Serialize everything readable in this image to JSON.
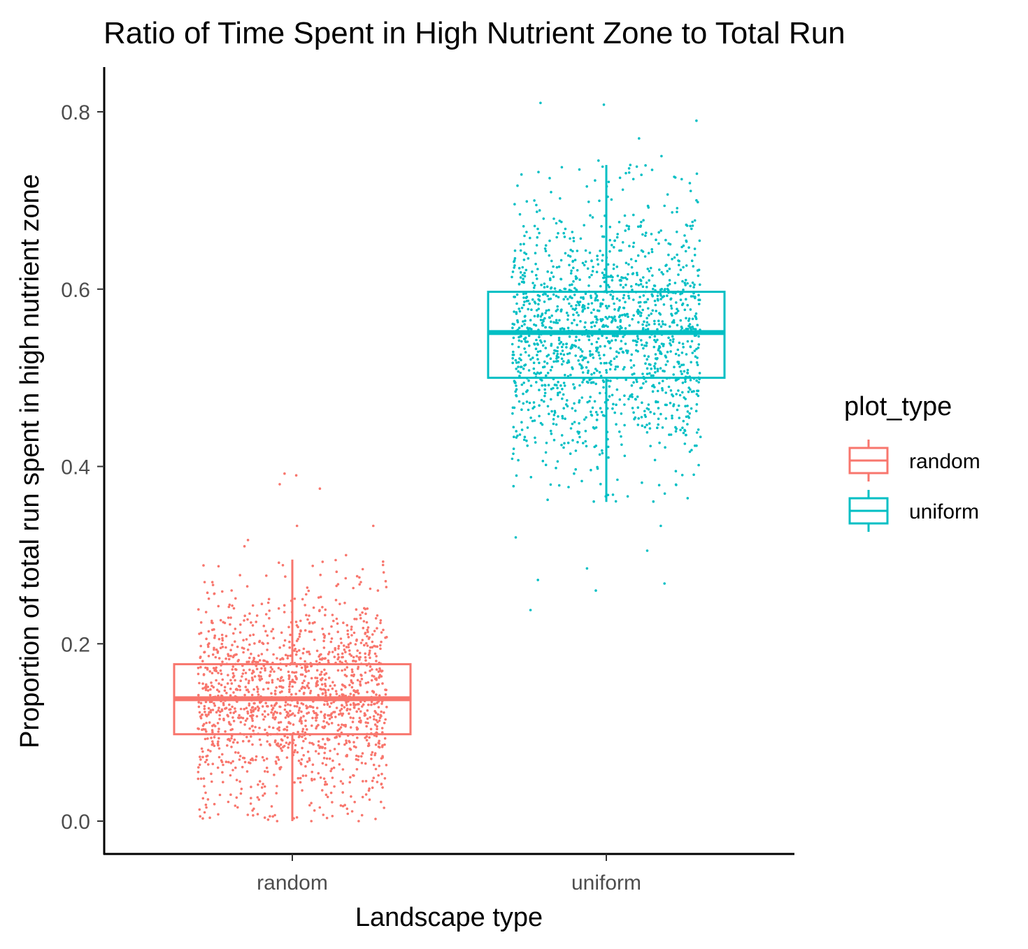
{
  "chart_data": {
    "type": "boxplot",
    "title": "Ratio of Time Spent in High Nutrient Zone to Total Run",
    "xlabel": "Landscape type",
    "ylabel": "Proportion of total run spent in high nutrient zone",
    "categories": [
      "random",
      "uniform"
    ],
    "ylim": [
      -0.06,
      0.85
    ],
    "yticks": [
      0.0,
      0.2,
      0.4,
      0.6,
      0.8
    ],
    "ytick_labels": [
      "0.0",
      "0.2",
      "0.4",
      "0.6",
      "0.8"
    ],
    "grid": false,
    "legend": {
      "title": "plot_type",
      "position": "right",
      "entries": [
        "random",
        "uniform"
      ]
    },
    "colors": {
      "random": "#F8766D",
      "uniform": "#00BFC4"
    },
    "series": [
      {
        "name": "random",
        "box": {
          "whisker_low": 0.0,
          "q1": 0.098,
          "median": 0.138,
          "q3": 0.177,
          "whisker_high": 0.295
        },
        "point_count": 1500,
        "point_range": [
          0.0,
          0.392
        ],
        "sample_outliers": [
          0.392,
          0.39,
          0.38,
          0.375,
          0.333,
          0.333,
          0.317,
          0.31,
          0.3,
          0.0,
          0.0,
          0.0
        ]
      },
      {
        "name": "uniform",
        "box": {
          "whisker_low": 0.36,
          "q1": 0.5,
          "median": 0.551,
          "q3": 0.597,
          "whisker_high": 0.74
        },
        "point_count": 1500,
        "point_range": [
          0.238,
          0.81
        ],
        "sample_outliers": [
          0.81,
          0.808,
          0.79,
          0.77,
          0.75,
          0.745,
          0.74,
          0.333,
          0.32,
          0.305,
          0.285,
          0.272,
          0.268,
          0.26,
          0.238
        ]
      }
    ]
  }
}
